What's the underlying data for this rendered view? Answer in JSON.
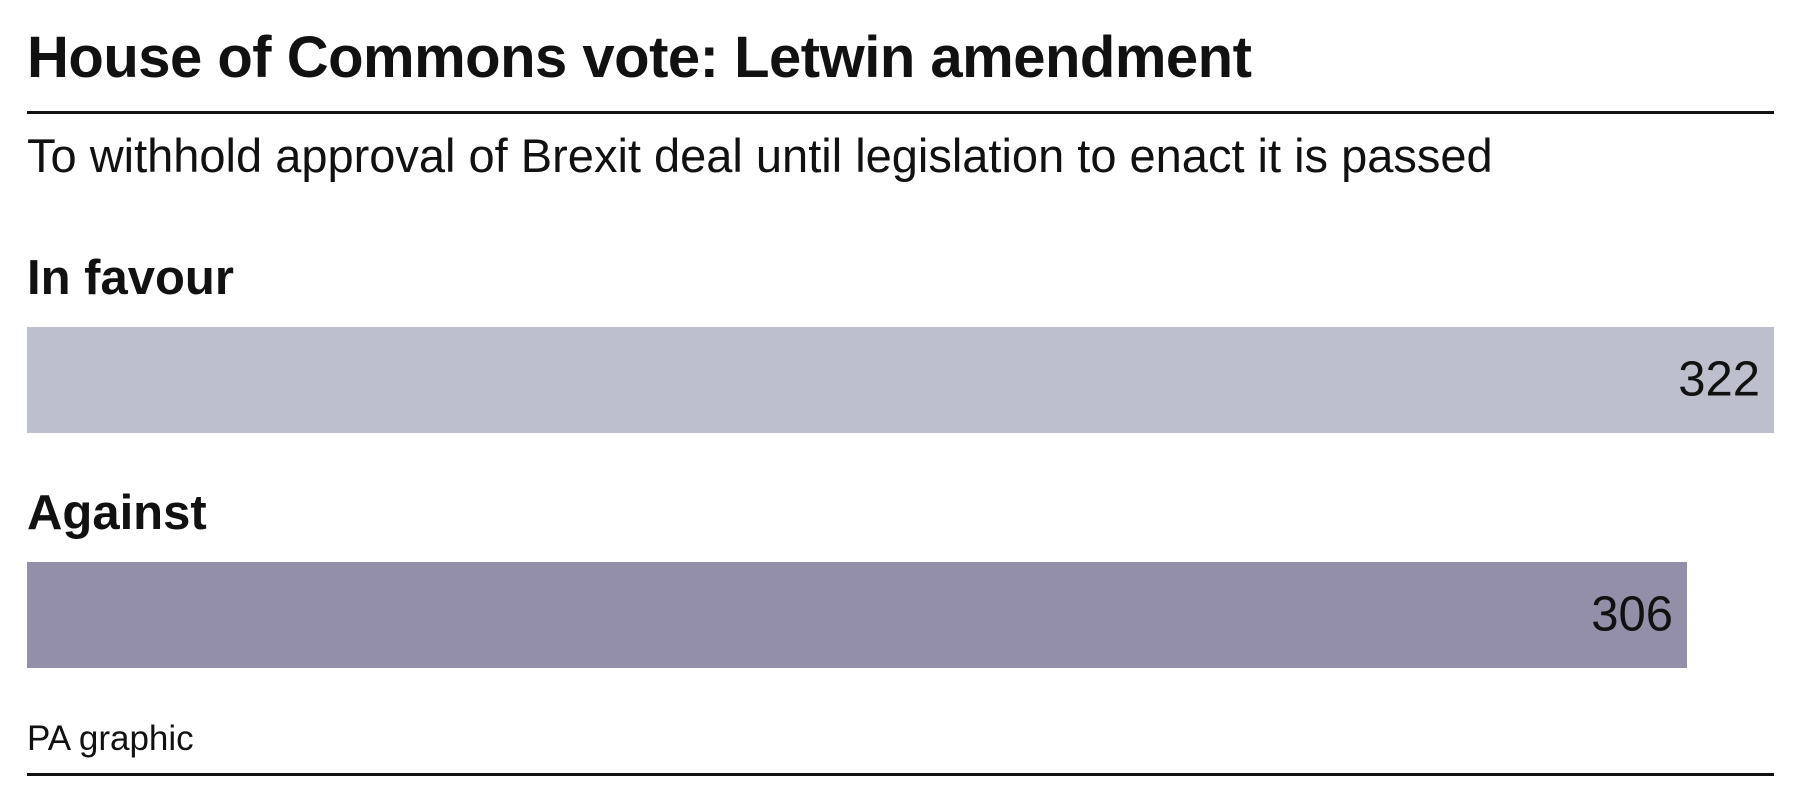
{
  "chart_data": {
    "type": "bar",
    "orientation": "horizontal",
    "title": "House of Commons vote: Letwin amendment",
    "subtitle": "To withhold approval of Brexit deal until legislation to enact it is passed",
    "categories": [
      "In favour",
      "Against"
    ],
    "values": [
      322,
      306
    ],
    "value_labels": [
      "322",
      "306"
    ],
    "colors": [
      "#bdbfcc",
      "#938fa8"
    ],
    "source": "PA graphic",
    "grid": false,
    "xlim": [
      0,
      322
    ]
  }
}
